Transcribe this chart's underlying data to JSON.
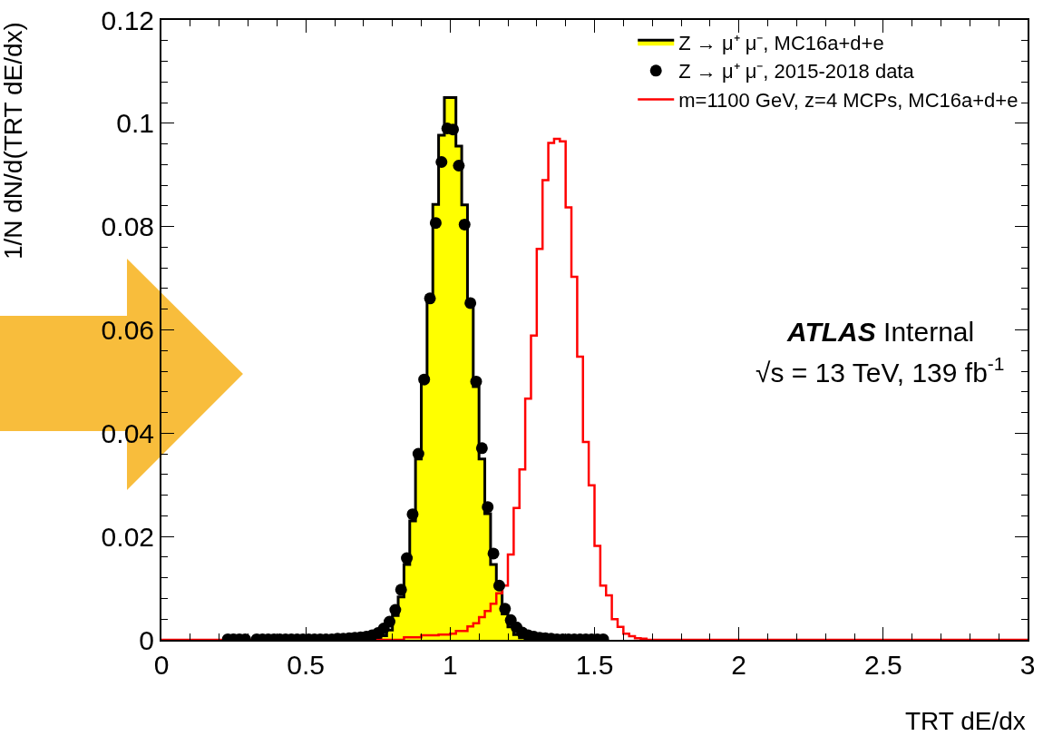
{
  "chart_data": {
    "type": "histogram",
    "xlabel": "TRT dE/dx",
    "ylabel": "1/N dN/d(TRT dE/dx)",
    "xlim": [
      0,
      3
    ],
    "xticks": [
      0,
      0.5,
      1,
      1.5,
      2,
      2.5,
      3
    ],
    "ylim": [
      0,
      0.12
    ],
    "yticks": [
      0,
      0.02,
      0.04,
      0.06,
      0.08,
      {
        "value": 0.1,
        "label": "0.1"
      },
      0.12
    ],
    "legend": "top right",
    "grid": false,
    "annotations": [
      "ATLAS Internal",
      "√s = 13 TeV, 139 fb$^{-1}$"
    ],
    "series": [
      {
        "type": "histogram",
        "name": "Z → μ⁺ μ⁻, MC16a+d+e",
        "color": "#ffff00",
        "bins": [
          0.74,
          0.76,
          0.78,
          0.8,
          0.82,
          0.84,
          0.86,
          0.88,
          0.9,
          0.92,
          0.94,
          0.96,
          0.98,
          1.0,
          1.02,
          1.04,
          1.06,
          1.08,
          1.1,
          1.12,
          1.14,
          1.16,
          1.18,
          1.2,
          1.22,
          1.24,
          1.26
        ],
        "values": [
          0.0004,
          0.0008,
          0.0019,
          0.0047,
          0.0083,
          0.0146,
          0.023,
          0.035,
          0.0508,
          0.0666,
          0.0843,
          0.0977,
          0.105,
          0.105,
          0.0956,
          0.0842,
          0.0652,
          0.049,
          0.035,
          0.0244,
          0.0146,
          0.01,
          0.005,
          0.0025,
          0.001,
          0.0004
        ]
      },
      {
        "type": "scatter",
        "name": "Z → μ⁺ μ⁻, 2015-2018 data",
        "color": "#000000",
        "marker": "circle",
        "x": [
          0.23,
          0.25,
          0.27,
          0.29,
          0.33,
          0.35,
          0.37,
          0.39,
          0.41,
          0.43,
          0.45,
          0.47,
          0.49,
          0.51,
          0.53,
          0.55,
          0.57,
          0.59,
          0.61,
          0.63,
          0.65,
          0.67,
          0.69,
          0.71,
          0.73,
          0.75,
          0.77,
          0.79,
          0.81,
          0.83,
          0.85,
          0.87,
          0.89,
          0.91,
          0.93,
          0.95,
          0.97,
          0.99,
          1.01,
          1.03,
          1.05,
          1.07,
          1.09,
          1.11,
          1.13,
          1.15,
          1.17,
          1.19,
          1.21,
          1.23,
          1.25,
          1.27,
          1.29,
          1.31,
          1.33,
          1.35,
          1.37,
          1.39,
          1.41,
          1.43,
          1.45,
          1.47,
          1.49,
          1.51,
          1.53
        ],
        "values": [
          0.0001,
          0.0001,
          0.0001,
          0.0001,
          0.0001,
          0.0001,
          0.0001,
          0.0001,
          0.0001,
          0.0001,
          0.0001,
          0.0001,
          0.0001,
          0.0001,
          0.0001,
          0.0001,
          0.0001,
          0.0001,
          0.0002,
          0.0002,
          0.0003,
          0.0004,
          0.0005,
          0.0006,
          0.0009,
          0.0013,
          0.0022,
          0.0035,
          0.0058,
          0.0097,
          0.0158,
          0.0243,
          0.036,
          0.0504,
          0.0661,
          0.0807,
          0.0925,
          0.099,
          0.0988,
          0.0918,
          0.0804,
          0.0652,
          0.05,
          0.0371,
          0.0257,
          0.0167,
          0.0105,
          0.006,
          0.0038,
          0.0024,
          0.0014,
          0.0009,
          0.0006,
          0.0004,
          0.0003,
          0.0002,
          0.0001,
          0.0001,
          0.0001,
          0.0001,
          0.0001,
          0.0001,
          0.0001,
          0.0001,
          0.0001
        ]
      },
      {
        "type": "step",
        "name": "m=1100 GeV, z=4 MCPs, MC16a+d+e",
        "color": "#ff0000",
        "x": [
          0,
          0.84,
          0.86,
          0.88,
          0.9,
          0.92,
          0.94,
          0.96,
          0.98,
          1.0,
          1.02,
          1.04,
          1.06,
          1.08,
          1.1,
          1.12,
          1.14,
          1.16,
          1.18,
          1.2,
          1.22,
          1.24,
          1.26,
          1.28,
          1.3,
          1.32,
          1.34,
          1.36,
          1.38,
          1.4,
          1.42,
          1.44,
          1.46,
          1.48,
          1.5,
          1.52,
          1.54,
          1.56,
          1.58,
          1.6,
          1.62,
          1.64,
          1.66,
          1.68,
          3
        ],
        "values": [
          0,
          0.0005,
          0.0005,
          0.0005,
          0.0009,
          0.0009,
          0.0009,
          0.001,
          0.001,
          0.0012,
          0.0017,
          0.0017,
          0.0026,
          0.0032,
          0.0044,
          0.0056,
          0.007,
          0.009,
          0.0105,
          0.0165,
          0.0255,
          0.033,
          0.0467,
          0.0589,
          0.0757,
          0.089,
          0.0962,
          0.097,
          0.0965,
          0.0837,
          0.0703,
          0.0548,
          0.0383,
          0.0299,
          0.0182,
          0.0105,
          0.0086,
          0.004,
          0.0025,
          0.0012,
          0.0007,
          0.0003,
          0.0002,
          0,
          0
        ]
      }
    ]
  }
}
